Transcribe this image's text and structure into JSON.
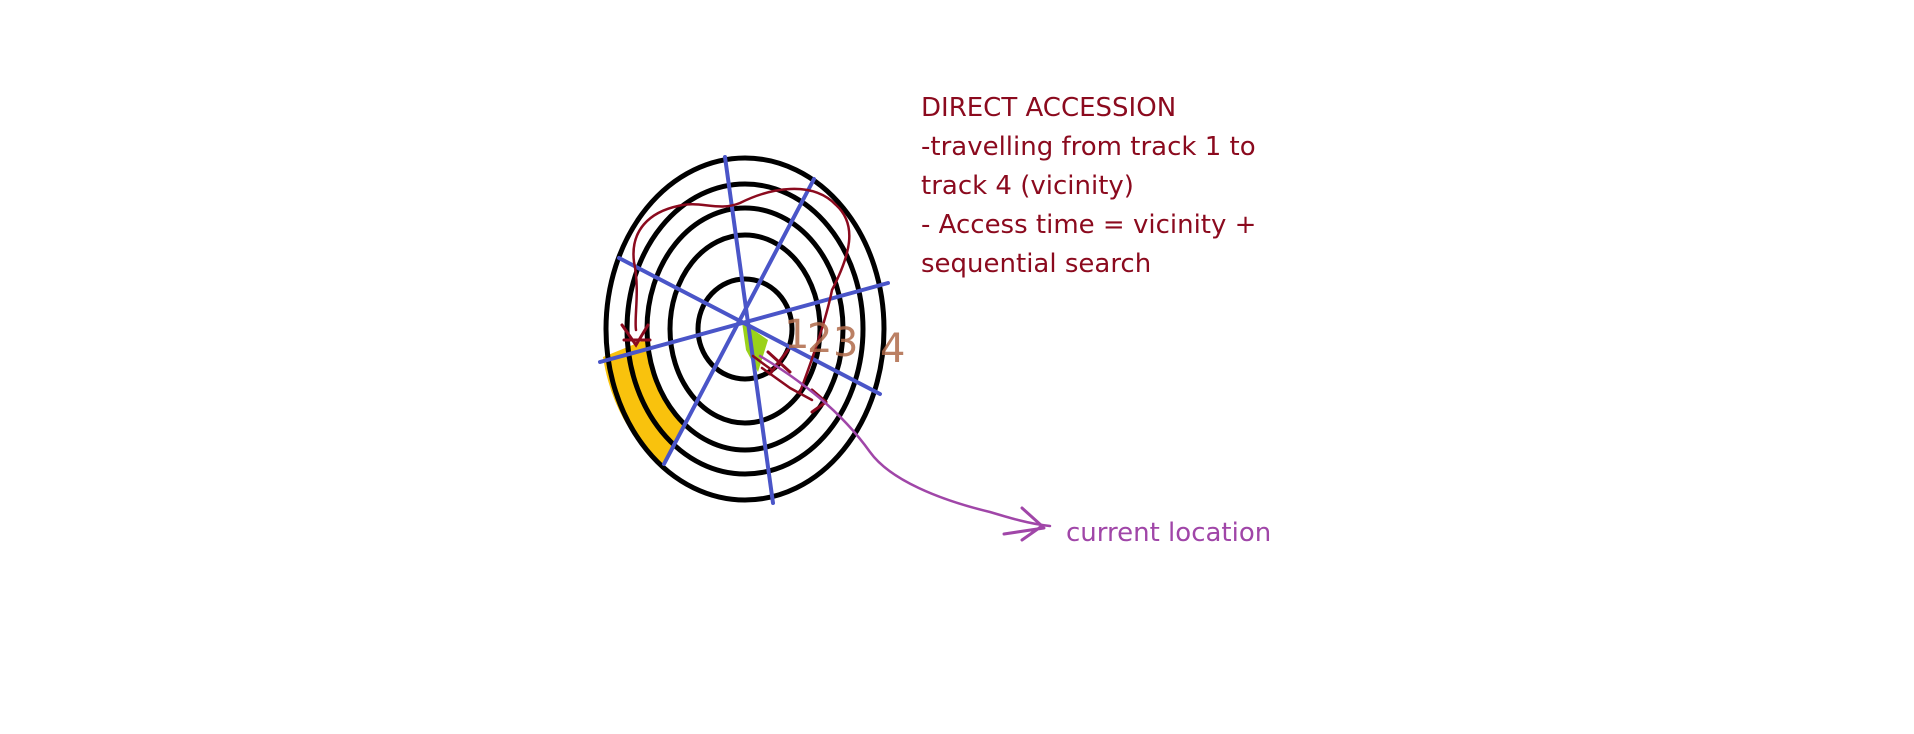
{
  "note": {
    "lines": [
      "DIRECT ACCESSION",
      "-travelling from track 1 to",
      "track 4 (vicinity)",
      "- Access  time = vicinity +",
      "sequential search"
    ]
  },
  "callout": {
    "label": "current location"
  },
  "track_labels": [
    "1",
    "2",
    "3",
    "4"
  ],
  "colors": {
    "track": "#000000",
    "sector_line": "#4a55c8",
    "highlight_sector": "#f9c20d",
    "current_sector": "#9ad21a",
    "path": "#8b0a1e",
    "callout": "#a046a8",
    "track_number": "#b06a4a",
    "note_text": "#8b0a1e"
  }
}
